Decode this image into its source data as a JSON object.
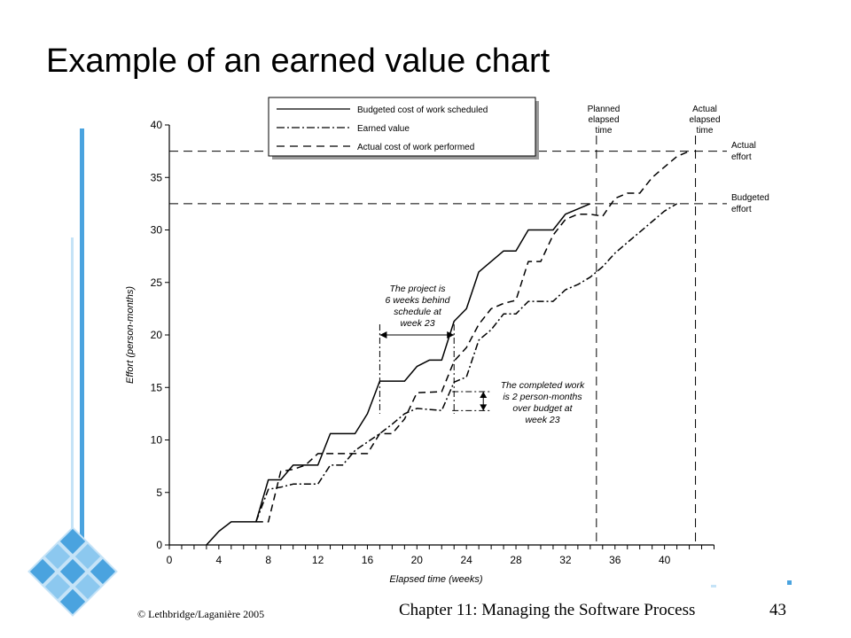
{
  "slide": {
    "title": "Example of an earned value chart",
    "footer_left": "© Lethbridge/Laganière 2005",
    "footer_center": "Chapter 11: Managing the Software Process",
    "page_number": "43"
  },
  "colors": {
    "line": "#000000",
    "deco_blue": "#4aa3df",
    "deco_light": "#c5e3f7"
  },
  "chart_data": {
    "type": "line",
    "title": "",
    "xlabel": "Elapsed time (weeks)",
    "ylabel": "Effort (person-months)",
    "xlim": [
      0,
      44
    ],
    "ylim": [
      0,
      40
    ],
    "x_ticks": [
      0,
      4,
      8,
      12,
      16,
      20,
      24,
      28,
      32,
      36,
      40
    ],
    "x_minor_step": 1,
    "y_ticks": [
      0,
      5,
      10,
      15,
      20,
      25,
      30,
      35,
      40
    ],
    "legend_position": "top-left",
    "series": [
      {
        "name": "Budgeted cost of work scheduled",
        "style": "solid",
        "points": [
          [
            3,
            0
          ],
          [
            4,
            1.3
          ],
          [
            5,
            2.2
          ],
          [
            7,
            2.2
          ],
          [
            8,
            6.2
          ],
          [
            9,
            6.2
          ],
          [
            10,
            7.6
          ],
          [
            12,
            7.6
          ],
          [
            13,
            10.6
          ],
          [
            15,
            10.6
          ],
          [
            16,
            12.5
          ],
          [
            17,
            15.6
          ],
          [
            19,
            15.6
          ],
          [
            20,
            17
          ],
          [
            21,
            17.6
          ],
          [
            22,
            17.6
          ],
          [
            23,
            21.3
          ],
          [
            24,
            22.5
          ],
          [
            25,
            26
          ],
          [
            26,
            27
          ],
          [
            27,
            28
          ],
          [
            28,
            28
          ],
          [
            29,
            30
          ],
          [
            31,
            30
          ],
          [
            32,
            31.5
          ],
          [
            33,
            32
          ],
          [
            34,
            32.5
          ]
        ]
      },
      {
        "name": "Earned value",
        "style": "dashdot",
        "points": [
          [
            7,
            2.2
          ],
          [
            8,
            5.3
          ],
          [
            9,
            5.5
          ],
          [
            10,
            5.8
          ],
          [
            12,
            5.8
          ],
          [
            13,
            7.6
          ],
          [
            14,
            7.6
          ],
          [
            15,
            9
          ],
          [
            17,
            10.6
          ],
          [
            18,
            11.5
          ],
          [
            19,
            12.5
          ],
          [
            20,
            13
          ],
          [
            22,
            12.8
          ],
          [
            23,
            15.5
          ],
          [
            24,
            16
          ],
          [
            25,
            19.5
          ],
          [
            26,
            20.5
          ],
          [
            27,
            22
          ],
          [
            28,
            22
          ],
          [
            29,
            23.2
          ],
          [
            31,
            23.2
          ],
          [
            32,
            24.3
          ],
          [
            33,
            24.8
          ],
          [
            34,
            25.5
          ],
          [
            35,
            26.5
          ],
          [
            36,
            27.8
          ],
          [
            37,
            28.8
          ],
          [
            38,
            29.8
          ],
          [
            39,
            30.8
          ],
          [
            40,
            31.8
          ],
          [
            41,
            32.5
          ]
        ]
      },
      {
        "name": "Actual cost of work performed",
        "style": "dashed",
        "points": [
          [
            7,
            2.2
          ],
          [
            8,
            2.2
          ],
          [
            9,
            7
          ],
          [
            10,
            7.2
          ],
          [
            11,
            7.6
          ],
          [
            12,
            8.7
          ],
          [
            16,
            8.7
          ],
          [
            17,
            10.6
          ],
          [
            18,
            10.6
          ],
          [
            19,
            12
          ],
          [
            20,
            14.5
          ],
          [
            22,
            14.6
          ],
          [
            23,
            17.5
          ],
          [
            24,
            18.8
          ],
          [
            25,
            21
          ],
          [
            26,
            22.5
          ],
          [
            27,
            23
          ],
          [
            28,
            23.3
          ],
          [
            29,
            27
          ],
          [
            30,
            27
          ],
          [
            31,
            29.5
          ],
          [
            32,
            31
          ],
          [
            33,
            31.5
          ],
          [
            34,
            31.5
          ],
          [
            35,
            31.3
          ],
          [
            36,
            33
          ],
          [
            37,
            33.5
          ],
          [
            38,
            33.5
          ],
          [
            39,
            35
          ],
          [
            40,
            36
          ],
          [
            41,
            37
          ],
          [
            42,
            37.5
          ]
        ]
      }
    ],
    "reference_lines": {
      "actual_effort": {
        "y": 37.5,
        "label_line1": "Actual",
        "label_line2": "effort"
      },
      "budgeted_effort": {
        "y": 32.5,
        "label_line1": "Budgeted",
        "label_line2": "effort"
      },
      "planned_elapsed_time": {
        "x": 34.5,
        "label_line1": "Planned",
        "label_line2": "elapsed",
        "label_line3": "time"
      },
      "actual_elapsed_time": {
        "x": 42.5,
        "label_line1": "Actual",
        "label_line2": "elapsed",
        "label_line3": "time"
      }
    },
    "annotations": {
      "schedule": {
        "line1": "The project is",
        "line2": "6 weeks behind",
        "line3": "schedule at",
        "line4": "week 23",
        "from_x": 17,
        "to_x": 23,
        "y": 20
      },
      "budget": {
        "line1": "The completed work",
        "line2": "is 2 person-months",
        "line3": "over budget at",
        "line4": "week 23",
        "x": 23,
        "from_y": 12.8,
        "to_y": 14.6
      }
    }
  }
}
